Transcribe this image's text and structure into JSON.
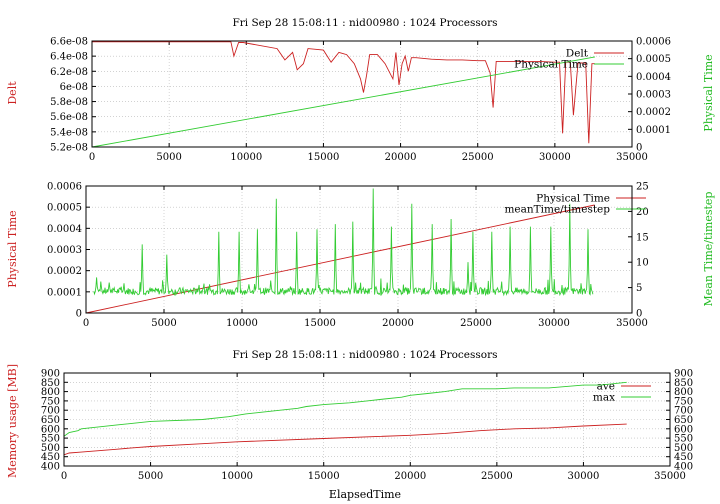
{
  "chart_data": [
    {
      "type": "line",
      "title": "Fri Sep 28 15:08:11 : nid00980 : 1024 Processors",
      "ylabel": "Delt",
      "y2label": "Physical Time",
      "xlim": [
        0,
        35000
      ],
      "ylim": [
        5.2e-08,
        6.6e-08
      ],
      "y2lim": [
        0,
        0.0006
      ],
      "xticks": [
        "0",
        "5000",
        "10000",
        "15000",
        "20000",
        "25000",
        "30000",
        "35000"
      ],
      "yticks": [
        "5.2e-08",
        "5.4e-08",
        "5.6e-08",
        "5.8e-08",
        "6e-08",
        "6.2e-08",
        "6.4e-08",
        "6.6e-08"
      ],
      "y2ticks": [
        "0",
        "0.0001",
        "0.0002",
        "0.0003",
        "0.0004",
        "0.0005",
        "0.0006"
      ],
      "grid": true,
      "legend": "top-right",
      "series": [
        {
          "name": "Delt",
          "color": "#cc2222",
          "axis": "left",
          "x": [
            0,
            9000,
            9200,
            9500,
            9800,
            12000,
            12500,
            13000,
            13300,
            13700,
            14000,
            15000,
            15500,
            16000,
            16500,
            17000,
            17400,
            17600,
            17800,
            18000,
            18500,
            19000,
            19500,
            19700,
            19900,
            20100,
            20300,
            20500,
            20700,
            21000,
            22000,
            23000,
            24000,
            25000,
            25500,
            25800,
            26000,
            26200,
            27000,
            28000,
            29000,
            30000,
            30300,
            30500,
            30700,
            31000,
            31200,
            31500,
            32000,
            32200,
            32400,
            32600
          ],
          "y": [
            6.59e-08,
            6.59e-08,
            6.4e-08,
            6.58e-08,
            6.58e-08,
            6.5e-08,
            6.35e-08,
            6.45e-08,
            6.22e-08,
            6.3e-08,
            6.5e-08,
            6.48e-08,
            6.32e-08,
            6.45e-08,
            6.42e-08,
            6.3e-08,
            6.1e-08,
            5.92e-08,
            6.15e-08,
            6.42e-08,
            6.42e-08,
            6.3e-08,
            6.1e-08,
            6.45e-08,
            6.02e-08,
            6.3e-08,
            6.4e-08,
            6.2e-08,
            6.38e-08,
            6.38e-08,
            6.36e-08,
            6.35e-08,
            6.35e-08,
            6.34e-08,
            6.34e-08,
            6.18e-08,
            5.72e-08,
            6.33e-08,
            6.33e-08,
            6.33e-08,
            6.33e-08,
            6.32e-08,
            6.32e-08,
            5.38e-08,
            6.32e-08,
            6.32e-08,
            5.62e-08,
            6.31e-08,
            6.31e-08,
            5.25e-08,
            6.3e-08,
            6.3e-08
          ]
        },
        {
          "name": "Physical Time",
          "color": "#33cc33",
          "axis": "right",
          "x": [
            0,
            32600
          ],
          "y": [
            0,
            0.00051
          ]
        }
      ]
    },
    {
      "type": "line",
      "title": "",
      "ylabel": "Physical Time",
      "y2label": "Mean Time/timestep",
      "xlim": [
        0,
        35000
      ],
      "ylim": [
        0,
        0.0006
      ],
      "y2lim": [
        0,
        25
      ],
      "xticks": [
        "0",
        "5000",
        "10000",
        "15000",
        "20000",
        "25000",
        "30000",
        "35000"
      ],
      "yticks": [
        "0",
        "0.0001",
        "0.0002",
        "0.0003",
        "0.0004",
        "0.0005",
        "0.0006"
      ],
      "y2ticks": [
        "0",
        "5",
        "10",
        "15",
        "20",
        "25"
      ],
      "grid": true,
      "legend": "top-right",
      "series": [
        {
          "name": "Physical Time",
          "color": "#cc2222",
          "axis": "left",
          "x": [
            0,
            32600
          ],
          "y": [
            0,
            0.00051
          ]
        },
        {
          "name": "meanTime/timestep",
          "color": "#33cc33",
          "axis": "right",
          "baseline": 4.3,
          "x_range": [
            500,
            32500
          ],
          "peaks": [
            {
              "x": 700,
              "y": 7
            },
            {
              "x": 1500,
              "y": 6
            },
            {
              "x": 3600,
              "y": 13.5
            },
            {
              "x": 5200,
              "y": 11.5
            },
            {
              "x": 8500,
              "y": 16
            },
            {
              "x": 9800,
              "y": 16
            },
            {
              "x": 11000,
              "y": 16.5
            },
            {
              "x": 12200,
              "y": 22.5
            },
            {
              "x": 13500,
              "y": 16
            },
            {
              "x": 14800,
              "y": 16.5
            },
            {
              "x": 16000,
              "y": 17.5
            },
            {
              "x": 17100,
              "y": 18
            },
            {
              "x": 18400,
              "y": 24.5
            },
            {
              "x": 19600,
              "y": 17
            },
            {
              "x": 20900,
              "y": 21.5
            },
            {
              "x": 22200,
              "y": 17.5
            },
            {
              "x": 23400,
              "y": 18.5
            },
            {
              "x": 24500,
              "y": 10
            },
            {
              "x": 24800,
              "y": 16
            },
            {
              "x": 26000,
              "y": 16
            },
            {
              "x": 27200,
              "y": 17
            },
            {
              "x": 28500,
              "y": 17
            },
            {
              "x": 29800,
              "y": 17
            },
            {
              "x": 31000,
              "y": 21.5
            },
            {
              "x": 32200,
              "y": 16.5
            }
          ]
        }
      ]
    },
    {
      "type": "line",
      "title": "Fri Sep 28 15:08:11 : nid00980 : 1024 Processors",
      "xlabel": "ElapsedTime",
      "ylabel": "Memory usage [MB]",
      "xlim": [
        0,
        35000
      ],
      "ylim": [
        400,
        900
      ],
      "y2lim": [
        400,
        900
      ],
      "xticks": [
        "0",
        "5000",
        "10000",
        "15000",
        "20000",
        "25000",
        "30000",
        "35000"
      ],
      "yticks": [
        "400",
        "450",
        "500",
        "550",
        "600",
        "650",
        "700",
        "750",
        "800",
        "850",
        "900"
      ],
      "y2ticks": [
        "400",
        "450",
        "500",
        "550",
        "600",
        "650",
        "700",
        "750",
        "800",
        "850",
        "900"
      ],
      "grid": true,
      "legend": "top-right",
      "series": [
        {
          "name": "ave",
          "color": "#cc2222",
          "x": [
            0,
            300,
            1000,
            2000,
            3000,
            4000,
            5000,
            8000,
            10000,
            15000,
            20000,
            22000,
            24000,
            26000,
            28000,
            30000,
            32500
          ],
          "y": [
            460,
            470,
            475,
            482,
            490,
            498,
            505,
            520,
            530,
            548,
            565,
            575,
            590,
            600,
            605,
            615,
            625
          ]
        },
        {
          "name": "max",
          "color": "#33cc33",
          "x": [
            0,
            300,
            800,
            1000,
            2000,
            3000,
            5000,
            8000,
            9500,
            10500,
            11500,
            12500,
            13500,
            14000,
            15000,
            16500,
            17500,
            18500,
            19500,
            20000,
            21000,
            22000,
            23000,
            24000,
            25000,
            26000,
            28000,
            30000,
            31000,
            32500
          ],
          "y": [
            560,
            580,
            590,
            600,
            610,
            620,
            640,
            650,
            665,
            680,
            690,
            700,
            710,
            720,
            730,
            740,
            750,
            760,
            770,
            780,
            790,
            800,
            815,
            815,
            815,
            820,
            820,
            835,
            835,
            850
          ]
        }
      ]
    }
  ]
}
